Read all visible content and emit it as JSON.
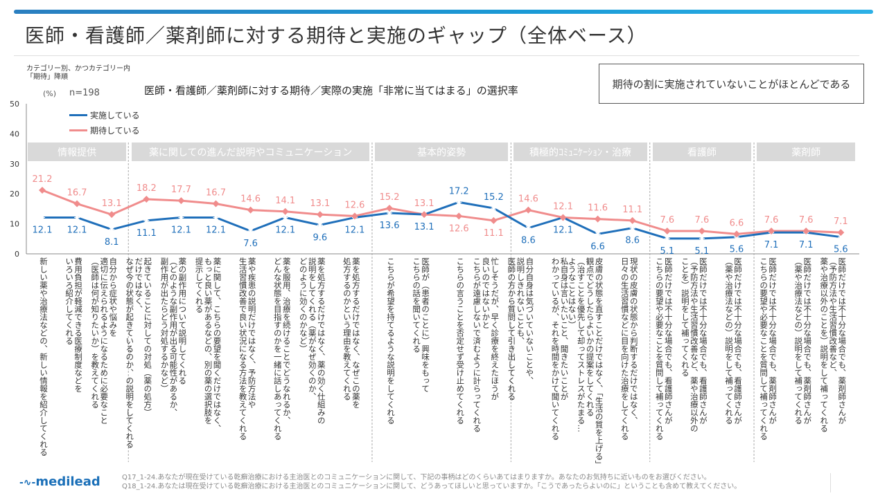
{
  "header": {
    "title": "医師・看護師／薬剤師に対する期待と実施のギャップ（全体ベース）"
  },
  "notes": {
    "sort_line1": "カテゴリー別、かつカテゴリー内",
    "sort_line2": "「期待」降順",
    "unit": "(%)",
    "n": "n=198"
  },
  "callout": "期待の割に実施されていないことがほとんどである",
  "chart_data": {
    "type": "line",
    "title": "医師・看護師／薬剤師に対する期待／実際の実施「非常に当てはまる」の選択率",
    "ylim": [
      0,
      50
    ],
    "yticks": [
      "0",
      "10",
      "20",
      "30",
      "40",
      "50"
    ],
    "legend_position": "top-left",
    "groups": [
      {
        "label": "情報提供",
        "count": 3
      },
      {
        "label": "薬に関しての進んだ説明やコミュニケーション",
        "count": 7
      },
      {
        "label": "基本的姿勢",
        "count": 4
      },
      {
        "label": "積極的ｺﾐｭﾆｹｰｼｮﾝ・治療",
        "count": 4
      },
      {
        "label": "看護師",
        "count": 3
      },
      {
        "label": "薬剤師",
        "count": 3
      }
    ],
    "categories": [
      "新しい薬や治療法などの、新しい情報を紹介してくれる",
      "費用負担が軽減できる医療制度などを\nいろいろ紹介してくれる",
      "自分から症状や悩みを\n適切に伝えられるようになるために必要なこと\n（医師は何が知りたいか）を教えてくれる",
      "起きていることに対しての対処（薬の処方）\nだけではなく、\nなぜ今の状態が起きているのか、の説明をしてくれる",
      "薬の副作用について説明してくれる\n（どのような副作用が出る可能性があるか、\n副作用が出たらどう対処するかなど）",
      "薬に関して、こちらの要望を聞くだけではなく、\nもっと良い薬があるなどの、別の薬の選択肢を\n提示してくれる",
      "薬や疾患の説明だけではなく、予防方法や\n生活習慣改善で良い状況になる方法を教えてくれる",
      "薬を服用、治療を続けることでどうなれるか、\nどんな状態を目指すのかを一緒に話しあってくれる",
      "薬を処方するだけではなく、薬の効く仕組みの\n説明をしてくれる（薬がなぜ効くのか、\nどのように効くのかなど）",
      "薬を処方するだけではなく、なぜこの薬を\n処方するのかという理由を教えてくれる",
      "こちらが希望を持てるような説明をしてくれる",
      "医師が（患者のことに）興味をもって\nこちらの話を聞いてくれる",
      "こちらの言うことを否定せず受け止めてくれる",
      "忙しそうだが、早く診療を終えたほうが\n良いのではないかと\nこちらが遠慮しないで済むように計らってくれる",
      "自分自身は気づいていないことや、\n説明しきれないことも、\n医師の方から質問して引き出してくれる",
      "私自身は言いたいこと、聞きたいことが\nわかっているが、それを時間をかけて聞いてくれる",
      "皮膚の状態を直すことだけではなく、「生活の質を上げる」\n観点でどうしたらよいかの提案をしてくれる\n（治すことを優先して却ってストレスがたまる…\nようなことはない）",
      "現状の皮膚の状態から判断するだけではなく、\n日々の生活習慣などに目を向けた治療をしてくれる",
      "医師だけでは不十分な場合でも、看護師さんが\nこちらの要望や必要なことを質問して補ってくれる",
      "医師だけでは不十分な場合でも、看護師さんが\n（予防方法や生活習慣改善など、薬や治療以外の\nことを）説明をして補ってくれる",
      "医師だけでは不十分な場合でも、看護師さんが\n（薬や治療法などの）説明をして補ってくれる",
      "医師だけでは不十分な場合でも、薬剤師さんが\nこちらの要望や必要なことを質問して補ってくれる",
      "医師だけでは不十分な場合でも、薬剤師さんが\n（薬や治療法などの）説明をして補ってくれる",
      "医師だけでは不十分な場合でも、薬剤師さんが\n（予防方法や生活習慣改善など、\n薬や治療以外のことを）説明をして補ってくれる"
    ],
    "series": [
      {
        "name": "実施している",
        "color": "#1f6fba",
        "marker": "asterisk",
        "values": [
          12.1,
          12.1,
          8.1,
          11.1,
          12.1,
          12.1,
          7.6,
          12.1,
          9.6,
          12.1,
          13.6,
          13.1,
          17.2,
          15.2,
          8.6,
          12.1,
          6.6,
          8.6,
          5.1,
          5.1,
          5.6,
          7.1,
          7.1,
          5.6
        ]
      },
      {
        "name": "期待している",
        "color": "#f08c8c",
        "marker": "diamond",
        "values": [
          21.2,
          16.7,
          13.1,
          18.2,
          17.7,
          16.7,
          14.6,
          14.1,
          13.1,
          12.6,
          15.2,
          13.1,
          12.6,
          11.1,
          14.6,
          12.1,
          11.6,
          11.1,
          7.6,
          7.6,
          6.6,
          7.6,
          7.6,
          7.1
        ]
      }
    ]
  },
  "footer": {
    "logo": "medilead",
    "q1": "Q17_1-24.あなたが現在受けている乾癬治療における主治医とのコミュニケーションに関して、下記の事柄はどのくらいあてはまりますか。あなたのお気持ちに近いものをお選びください。",
    "q2": "Q18_1-24.あなたは現在受けている乾癬治療における主治医とのコミュニケーションに関して、どうあってほしいと思っていますか。「こうであったらよいのに」ということも含めて教えてください。"
  }
}
